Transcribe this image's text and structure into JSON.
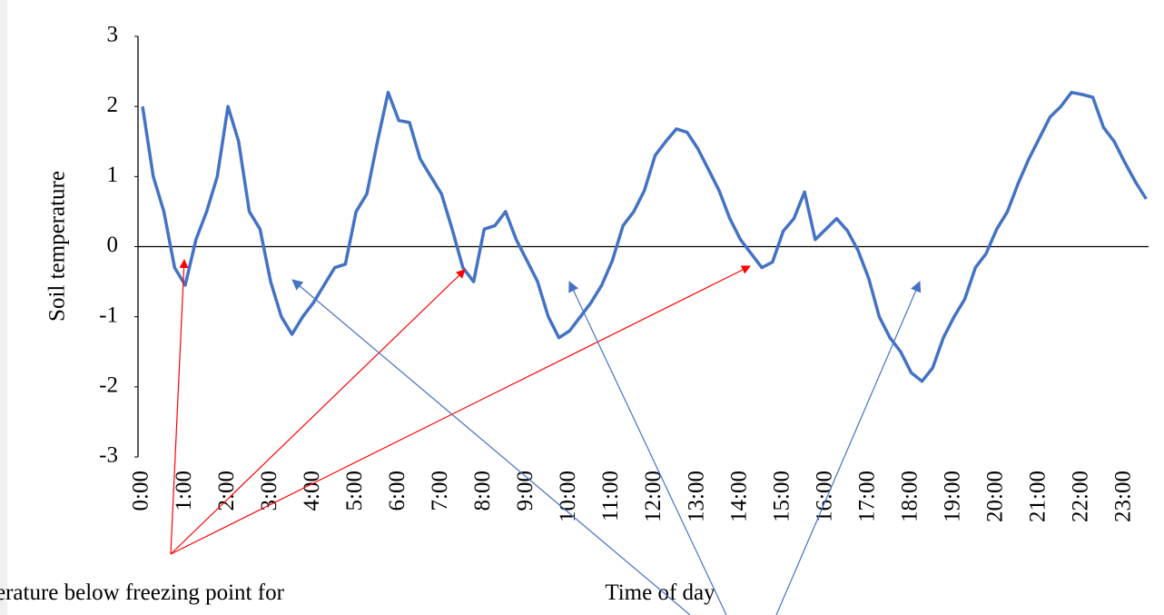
{
  "chart_data": {
    "type": "line",
    "y_label": "Soil temperature",
    "x_label": "Time of day",
    "annotation": "erature below freezing point for",
    "categories": [
      "0:00",
      null,
      null,
      null,
      "1:00",
      null,
      null,
      null,
      "2:00",
      null,
      null,
      null,
      "3:00",
      null,
      null,
      null,
      "4:00",
      null,
      null,
      null,
      "5:00",
      null,
      null,
      null,
      "6:00",
      null,
      null,
      null,
      "7:00",
      null,
      null,
      null,
      "8:00",
      null,
      null,
      null,
      "9:00",
      null,
      null,
      null,
      "10:00",
      null,
      null,
      null,
      "11:00",
      null,
      null,
      null,
      "12:00",
      null,
      null,
      null,
      "13:00",
      null,
      null,
      null,
      "14:00",
      null,
      null,
      null,
      "15:00",
      null,
      null,
      null,
      "16:00",
      null,
      null,
      null,
      "17:00",
      null,
      null,
      null,
      "18:00",
      null,
      null,
      null,
      "19:00",
      null,
      null,
      null,
      "20:00",
      null,
      null,
      null,
      "21:00",
      null,
      null,
      null,
      "22:00",
      null,
      null,
      null,
      "23:00",
      null,
      null
    ],
    "series": [
      {
        "name": "Soil temperature",
        "color": "#4472c4",
        "values": [
          2.0,
          1.0,
          0.5,
          -0.3,
          -0.55,
          0.1,
          0.5,
          1.0,
          2.0,
          1.5,
          0.5,
          0.25,
          -0.5,
          -1.0,
          -1.25,
          -1.0,
          -0.8,
          -0.55,
          -0.3,
          -0.25,
          0.5,
          0.75,
          1.5,
          2.2,
          1.8,
          1.77,
          1.25,
          1.0,
          0.75,
          0.25,
          -0.3,
          -0.5,
          0.25,
          0.3,
          0.5,
          0.1,
          -0.2,
          -0.5,
          -1.0,
          -1.3,
          -1.2,
          -1.0,
          -0.8,
          -0.55,
          -0.2,
          0.3,
          0.5,
          0.8,
          1.3,
          1.5,
          1.68,
          1.63,
          1.4,
          1.1,
          0.8,
          0.4,
          0.1,
          -0.1,
          -0.3,
          -0.22,
          0.22,
          0.4,
          0.78,
          0.1,
          0.25,
          0.4,
          0.23,
          -0.05,
          -0.45,
          -1.0,
          -1.3,
          -1.5,
          -1.8,
          -1.92,
          -1.73,
          -1.3,
          -1.0,
          -0.75,
          -0.3,
          -0.1,
          0.25,
          0.5,
          0.9,
          1.25,
          1.55,
          1.85,
          2.0,
          2.2,
          2.17,
          2.13,
          1.7,
          1.5,
          1.2,
          0.92,
          0.68
        ]
      }
    ],
    "ylim": [
      -3,
      3
    ],
    "yticks": [
      -3,
      -2,
      -1,
      0,
      1,
      2,
      3
    ],
    "grid": false
  }
}
